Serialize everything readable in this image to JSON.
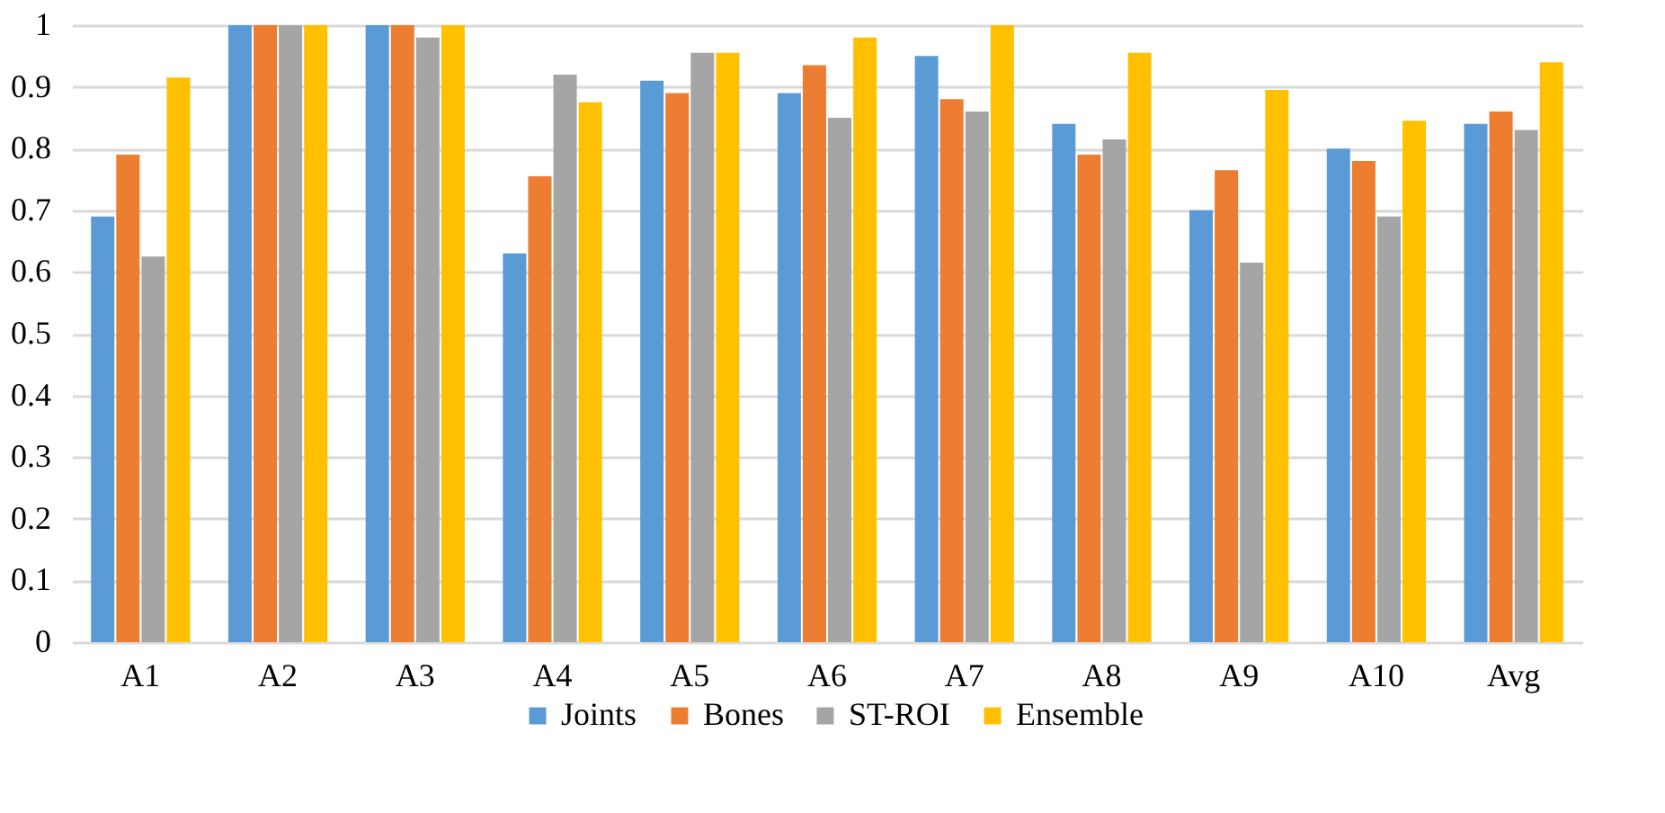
{
  "chart_data": {
    "type": "bar",
    "categories": [
      "A1",
      "A2",
      "A3",
      "A4",
      "A5",
      "A6",
      "A7",
      "A8",
      "A9",
      "A10",
      "Avg"
    ],
    "series": [
      {
        "name": "Joints",
        "color": "#5b9bd5",
        "values": [
          0.69,
          1,
          1,
          0.63,
          0.91,
          0.89,
          0.95,
          0.84,
          0.7,
          0.8,
          0.84
        ]
      },
      {
        "name": "Bones",
        "color": "#ed7d31",
        "values": [
          0.79,
          1,
          1,
          0.755,
          0.89,
          0.935,
          0.88,
          0.79,
          0.765,
          0.78,
          0.86
        ]
      },
      {
        "name": "ST-ROI",
        "color": "#a5a5a5",
        "values": [
          0.625,
          1,
          0.98,
          0.92,
          0.955,
          0.85,
          0.86,
          0.815,
          0.615,
          0.69,
          0.83
        ]
      },
      {
        "name": "Ensemble",
        "color": "#ffc000",
        "values": [
          0.915,
          1,
          1,
          0.875,
          0.955,
          0.98,
          1,
          0.955,
          0.895,
          0.845,
          0.94
        ]
      }
    ],
    "ylim": [
      0,
      1
    ],
    "yticks": [
      0,
      0.1,
      0.2,
      0.3,
      0.4,
      0.5,
      0.6,
      0.7,
      0.8,
      0.9,
      1
    ],
    "grid": "y",
    "legend": "bottom"
  }
}
